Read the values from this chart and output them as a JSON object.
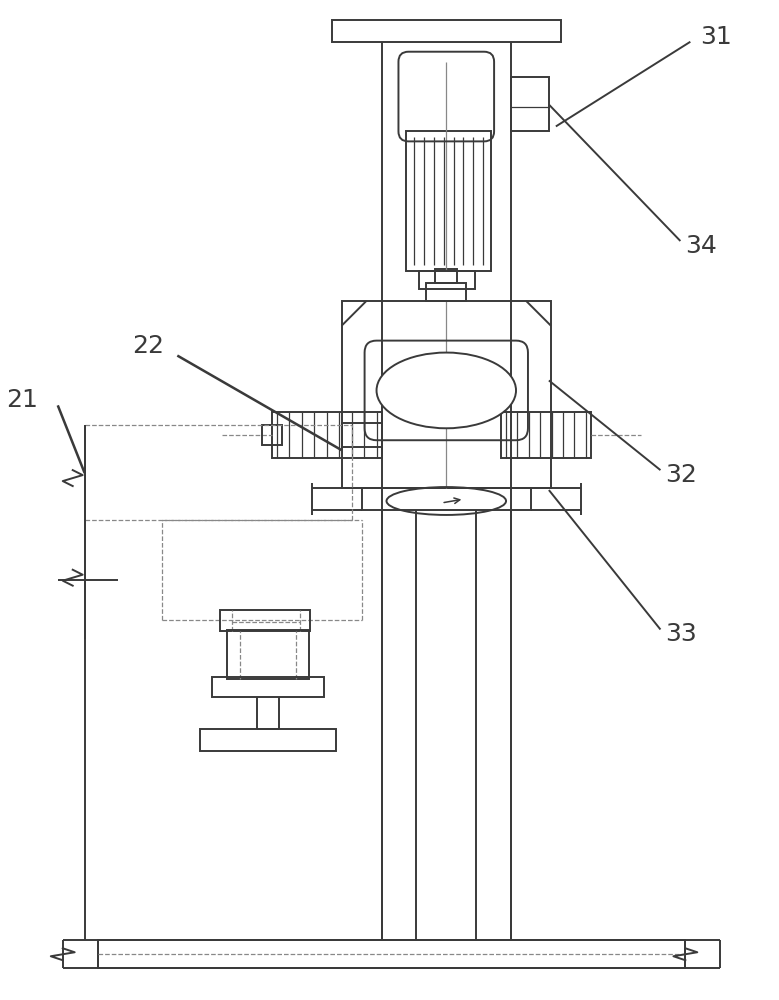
{
  "bg_color": "#ffffff",
  "line_color": "#3a3a3a",
  "dashed_color": "#888888",
  "label_fontsize": 18,
  "lw_main": 1.4,
  "lw_thin": 0.9,
  "lw_dash": 0.9
}
